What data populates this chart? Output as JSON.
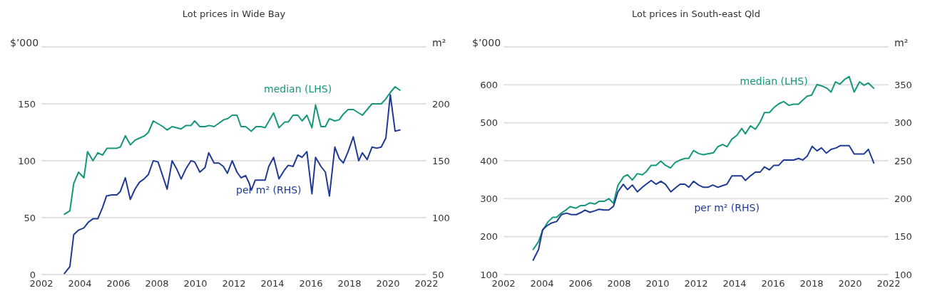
{
  "chart_data": [
    {
      "type": "line",
      "title": "Lot prices in Wide Bay",
      "ylabel": "$’000",
      "y2label": "m²",
      "grid": "y",
      "xlim": [
        2002,
        2022
      ],
      "xticks": [
        2002,
        2004,
        2006,
        2008,
        2010,
        2012,
        2014,
        2016,
        2018,
        2020,
        2022
      ],
      "ylim": [
        0,
        200
      ],
      "yticks": [
        0,
        50,
        100,
        150,
        {
          "value": 200,
          "label": null
        }
      ],
      "y2lim": [
        50,
        250
      ],
      "y2ticks": [
        50,
        100,
        150,
        200
      ],
      "series": [
        {
          "name": "median (LHS)",
          "color": "#14977b",
          "x": [
            2003.2,
            2003.48,
            2003.68,
            2003.93,
            2004.21,
            2004.4,
            2004.68,
            2004.93,
            2005.18,
            2005.41,
            2005.92,
            2006.1,
            2006.36,
            2006.62,
            2006.86,
            2007.11,
            2007.37,
            2007.56,
            2007.81,
            2008.31,
            2008.53,
            2008.79,
            2009.26,
            2009.51,
            2009.77,
            2009.96,
            2010.23,
            2010.5,
            2010.71,
            2010.97,
            2011.22,
            2011.47,
            2011.68,
            2011.91,
            2012.16,
            2012.37,
            2012.61,
            2012.9,
            2013.15,
            2013.4,
            2013.62,
            2014.06,
            2014.34,
            2014.63,
            2014.82,
            2015.07,
            2015.32,
            2015.54,
            2015.79,
            2016.05,
            2016.24,
            2016.52,
            2016.75,
            2016.96,
            2017.24,
            2017.47,
            2017.68,
            2017.93,
            2018.2,
            2018.67,
            2018.92,
            2019.17,
            2019.65,
            2019.87,
            2020.12,
            2020.37,
            2020.62
          ],
          "values": [
            53,
            56,
            80,
            90,
            85,
            108,
            100,
            107,
            105,
            111,
            111,
            112,
            122,
            114,
            118,
            120,
            122,
            125,
            135,
            130,
            127,
            130,
            128,
            131,
            131,
            135,
            130,
            130,
            131,
            130,
            133,
            136,
            137,
            140,
            140,
            130,
            130,
            126,
            130,
            130,
            129,
            142,
            129,
            134,
            134,
            140,
            140,
            135,
            140,
            129,
            149,
            130,
            130,
            137,
            135,
            136,
            141,
            145,
            145,
            140,
            145,
            150,
            150,
            154,
            160,
            165,
            162
          ]
        },
        {
          "name": "per m² (RHS)",
          "color": "#1f3a93",
          "axis": "y2",
          "x": [
            2003.2,
            2003.48,
            2003.68,
            2003.93,
            2004.21,
            2004.44,
            2004.68,
            2004.93,
            2005.18,
            2005.38,
            2005.66,
            2005.92,
            2006.1,
            2006.36,
            2006.62,
            2006.86,
            2007.09,
            2007.33,
            2007.56,
            2007.81,
            2008.06,
            2008.53,
            2008.79,
            2009.05,
            2009.26,
            2009.51,
            2009.77,
            2009.96,
            2010.23,
            2010.5,
            2010.69,
            2010.97,
            2011.22,
            2011.45,
            2011.66,
            2011.91,
            2012.16,
            2012.37,
            2012.61,
            2012.8,
            2012.9,
            2013.11,
            2013.62,
            2013.81,
            2014.06,
            2014.34,
            2014.63,
            2014.82,
            2015.07,
            2015.32,
            2015.54,
            2015.79,
            2016.05,
            2016.24,
            2016.52,
            2016.75,
            2016.96,
            2017.24,
            2017.47,
            2017.68,
            2017.93,
            2018.2,
            2018.48,
            2018.67,
            2018.92,
            2019.17,
            2019.42,
            2019.65,
            2019.89,
            2020.12,
            2020.37,
            2020.62
          ],
          "values": [
            51,
            57,
            85,
            89,
            91,
            96,
            99,
            99,
            109,
            119,
            120,
            120,
            123,
            135,
            116,
            125,
            131,
            134,
            138,
            150,
            149,
            125,
            150,
            142,
            134,
            143,
            150,
            149,
            140,
            144,
            157,
            148,
            148,
            145,
            139,
            150,
            140,
            135,
            137,
            130,
            124,
            133,
            133,
            145,
            153,
            134,
            142,
            146,
            145,
            155,
            153,
            158,
            121,
            153,
            145,
            140,
            119,
            162,
            152,
            148,
            158,
            171,
            150,
            157,
            151,
            162,
            161,
            162,
            170,
            208,
            176,
            177
          ]
        }
      ]
    },
    {
      "type": "line",
      "title": "Lot prices in South-east Qld",
      "ylabel": "$’000",
      "y2label": "m²",
      "grid": "y",
      "xlim": [
        2002,
        2022
      ],
      "xticks": [
        2002,
        2004,
        2006,
        2008,
        2010,
        2012,
        2014,
        2016,
        2018,
        2020,
        2022
      ],
      "ylim": [
        100,
        700
      ],
      "yticks": [
        100,
        200,
        300,
        400,
        500,
        600,
        {
          "value": 700,
          "label": null
        }
      ],
      "y2lim": [
        100,
        400
      ],
      "y2ticks": [
        100,
        150,
        200,
        250,
        300,
        350
      ],
      "series": [
        {
          "name": "median (LHS)",
          "color": "#14977b",
          "x": [
            2003.54,
            2003.82,
            2004.03,
            2004.31,
            2004.56,
            2004.76,
            2004.95,
            2005.21,
            2005.46,
            2005.76,
            2006.01,
            2006.23,
            2006.49,
            2006.74,
            2006.96,
            2007.22,
            2007.47,
            2007.71,
            2007.94,
            2008.24,
            2008.44,
            2008.69,
            2008.95,
            2009.21,
            2009.41,
            2009.67,
            2009.92,
            2010.17,
            2010.41,
            2010.67,
            2010.91,
            2011.17,
            2011.42,
            2011.62,
            2011.87,
            2012.13,
            2012.38,
            2012.9,
            2013.13,
            2013.38,
            2013.61,
            2013.86,
            2014.12,
            2014.37,
            2014.56,
            2014.82,
            2015.08,
            2015.33,
            2015.55,
            2015.81,
            2016.04,
            2016.29,
            2016.55,
            2016.82,
            2017.06,
            2017.32,
            2017.54,
            2017.77,
            2018.0,
            2018.28,
            2018.54,
            2018.8,
            2019.01,
            2019.24,
            2019.47,
            2019.73,
            2019.95,
            2020.21,
            2020.49,
            2020.72,
            2020.95,
            2021.23
          ],
          "values": [
            166,
            187,
            216,
            239,
            251,
            251,
            260,
            269,
            279,
            275,
            282,
            282,
            289,
            286,
            293,
            293,
            300,
            288,
            335,
            358,
            363,
            349,
            366,
            363,
            371,
            388,
            388,
            399,
            388,
            381,
            395,
            402,
            406,
            406,
            427,
            419,
            416,
            421,
            437,
            443,
            437,
            457,
            467,
            485,
            471,
            492,
            483,
            502,
            527,
            527,
            540,
            550,
            556,
            546,
            549,
            549,
            560,
            570,
            573,
            601,
            597,
            591,
            581,
            608,
            602,
            615,
            622,
            581,
            608,
            599,
            605,
            591
          ]
        },
        {
          "name": "per m² (RHS)",
          "color": "#1f3a93",
          "axis": "y2",
          "x": [
            2003.54,
            2003.82,
            2004.03,
            2004.24,
            2004.5,
            2004.76,
            2005.01,
            2005.27,
            2005.53,
            2005.78,
            2006.04,
            2006.23,
            2006.49,
            2006.74,
            2006.96,
            2007.22,
            2007.47,
            2007.71,
            2007.94,
            2008.22,
            2008.44,
            2008.69,
            2008.95,
            2009.21,
            2009.41,
            2009.67,
            2009.92,
            2010.17,
            2010.41,
            2010.69,
            2010.97,
            2011.17,
            2011.42,
            2011.62,
            2011.87,
            2012.13,
            2012.38,
            2012.62,
            2012.87,
            2013.13,
            2013.35,
            2013.6,
            2013.86,
            2014.37,
            2014.56,
            2014.82,
            2015.08,
            2015.33,
            2015.55,
            2015.81,
            2016.04,
            2016.29,
            2016.55,
            2017.06,
            2017.32,
            2017.54,
            2017.77,
            2018.03,
            2018.28,
            2018.51,
            2018.77,
            2019.01,
            2019.28,
            2019.5,
            2019.95,
            2020.21,
            2020.72,
            2020.95,
            2021.23
          ],
          "values": [
            119,
            133,
            159,
            164,
            168,
            170,
            179,
            181,
            179,
            179,
            182,
            185,
            182,
            184,
            186,
            185,
            185,
            190,
            209,
            219,
            212,
            218,
            209,
            215,
            219,
            224,
            219,
            223,
            219,
            209,
            215,
            219,
            219,
            215,
            223,
            218,
            215,
            215,
            218,
            215,
            217,
            219,
            230,
            230,
            224,
            230,
            235,
            235,
            242,
            238,
            244,
            244,
            251,
            251,
            253,
            251,
            256,
            269,
            263,
            267,
            260,
            265,
            267,
            270,
            270,
            259,
            259,
            265,
            247
          ]
        }
      ]
    }
  ]
}
